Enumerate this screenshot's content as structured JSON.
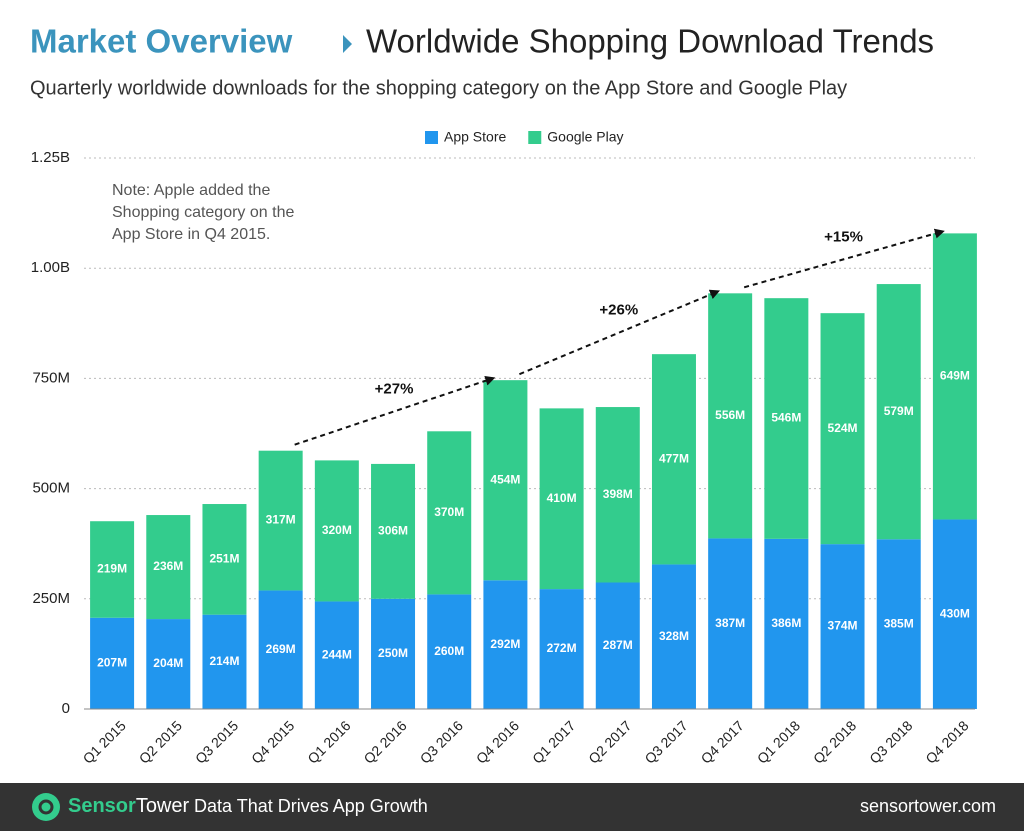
{
  "chart_data": {
    "type": "stacked_bar",
    "title_section": "Market Overview",
    "title": "Worldwide Shopping Download Trends",
    "subtitle": "Quarterly worldwide downloads for the shopping category on the App Store and Google Play",
    "categories": [
      "Q1 2015",
      "Q2 2015",
      "Q3 2015",
      "Q4 2015",
      "Q1 2016",
      "Q2 2016",
      "Q3 2016",
      "Q4 2016",
      "Q1 2017",
      "Q2 2017",
      "Q3 2017",
      "Q4 2017",
      "Q1 2018",
      "Q2 2018",
      "Q3 2018",
      "Q4 2018"
    ],
    "series": [
      {
        "name": "App Store",
        "color": "#2196ee",
        "values": [
          207,
          204,
          214,
          269,
          244,
          250,
          260,
          292,
          272,
          287,
          328,
          387,
          386,
          374,
          385,
          430
        ],
        "value_labels": [
          "207M",
          "204M",
          "214M",
          "269M",
          "244M",
          "250M",
          "260M",
          "292M",
          "272M",
          "287M",
          "328M",
          "387M",
          "386M",
          "374M",
          "385M",
          "430M"
        ]
      },
      {
        "name": "Google Play",
        "color": "#33cc8d",
        "values": [
          219,
          236,
          251,
          317,
          320,
          306,
          370,
          454,
          410,
          398,
          477,
          556,
          546,
          524,
          579,
          649
        ],
        "value_labels": [
          "219M",
          "236M",
          "251M",
          "317M",
          "320M",
          "306M",
          "370M",
          "454M",
          "410M",
          "398M",
          "477M",
          "556M",
          "546M",
          "524M",
          "579M",
          "649M"
        ]
      }
    ],
    "ylim": [
      0,
      1250
    ],
    "yticks": [
      0,
      {
        "value": 250,
        "label": "250M"
      },
      {
        "value": 500,
        "label": "500M"
      },
      {
        "value": 750,
        "label": "750M"
      },
      {
        "value": 1000,
        "label": "1.00B"
      },
      {
        "value": 1250,
        "label": "1.25B"
      }
    ],
    "grid": true,
    "legend": "top",
    "note": [
      "Note: Apple added the",
      "Shopping category on the",
      "App Store in Q4 2015."
    ],
    "annotations": [
      "+27%",
      "+26%",
      "+15%"
    ]
  },
  "footer": {
    "brand_a": "Sensor",
    "brand_b": "Tower",
    "tagline": "Data That Drives App Growth",
    "url": "sensortower.com"
  }
}
